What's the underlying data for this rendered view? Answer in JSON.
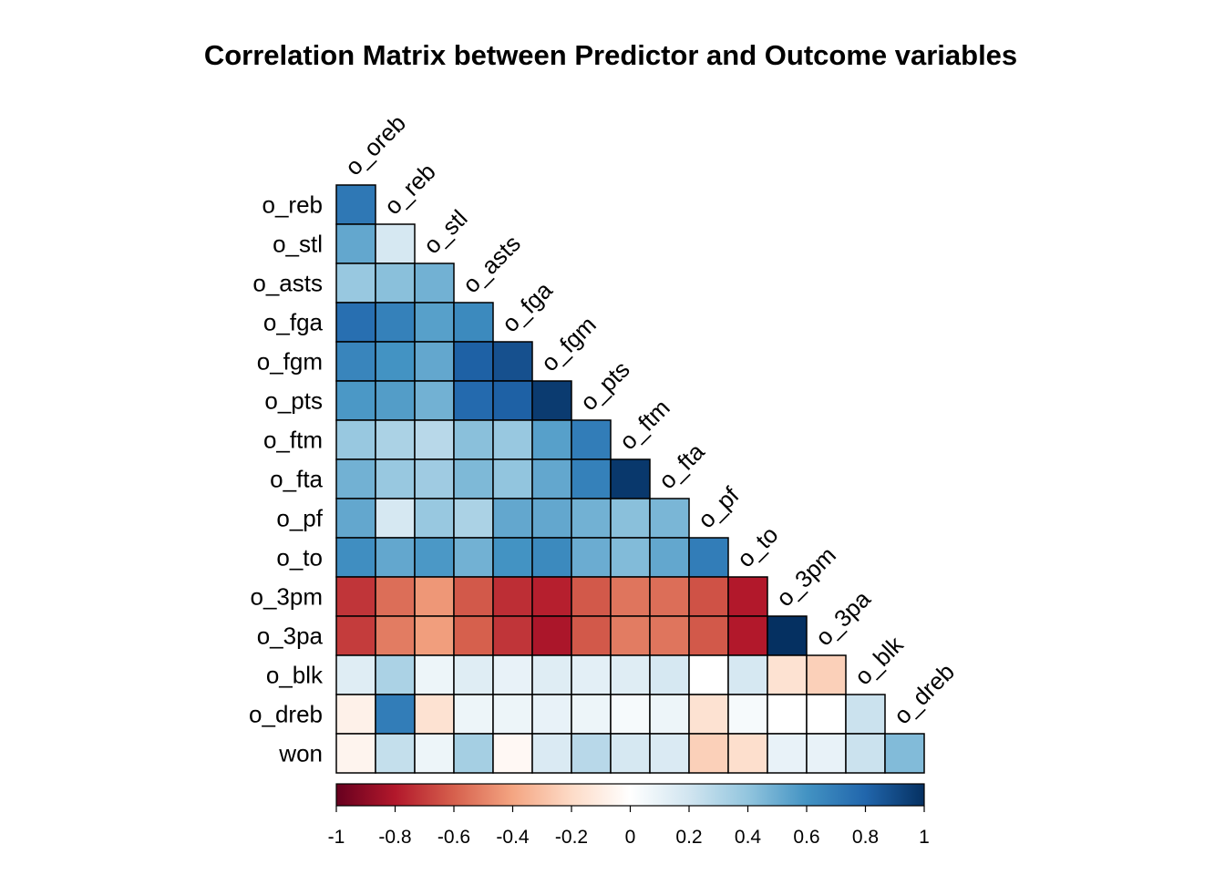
{
  "chart_data": {
    "type": "heatmap",
    "title": "Correlation Matrix between Predictor and Outcome variables",
    "row_labels": [
      "o_reb",
      "o_stl",
      "o_asts",
      "o_fga",
      "o_fgm",
      "o_pts",
      "o_ftm",
      "o_fta",
      "o_pf",
      "o_to",
      "o_3pm",
      "o_3pa",
      "o_blk",
      "o_dreb",
      "won"
    ],
    "col_labels": [
      "o_oreb",
      "o_reb",
      "o_stl",
      "o_asts",
      "o_fga",
      "o_fgm",
      "o_pts",
      "o_ftm",
      "o_fta",
      "o_pf",
      "o_to",
      "o_3pm",
      "o_3pa",
      "o_blk",
      "o_dreb"
    ],
    "lower_triangle": true,
    "values": [
      [
        0.72
      ],
      [
        0.52,
        0.18
      ],
      [
        0.38,
        0.42,
        0.48
      ],
      [
        0.76,
        0.68,
        0.55,
        0.64
      ],
      [
        0.66,
        0.6,
        0.52,
        0.82,
        0.88
      ],
      [
        0.58,
        0.56,
        0.48,
        0.78,
        0.82,
        0.96
      ],
      [
        0.38,
        0.32,
        0.28,
        0.42,
        0.38,
        0.55,
        0.7
      ],
      [
        0.48,
        0.38,
        0.36,
        0.45,
        0.4,
        0.52,
        0.68,
        0.97
      ],
      [
        0.52,
        0.18,
        0.38,
        0.32,
        0.52,
        0.52,
        0.48,
        0.42,
        0.46
      ],
      [
        0.62,
        0.52,
        0.58,
        0.48,
        0.6,
        0.64,
        0.5,
        0.44,
        0.52,
        0.7
      ],
      [
        -0.72,
        -0.56,
        -0.44,
        -0.62,
        -0.74,
        -0.78,
        -0.62,
        -0.54,
        -0.56,
        -0.64,
        -0.8
      ],
      [
        -0.7,
        -0.52,
        -0.42,
        -0.6,
        -0.72,
        -0.82,
        -0.62,
        -0.52,
        -0.54,
        -0.62,
        -0.8,
        1.0
      ],
      [
        0.14,
        0.32,
        0.08,
        0.14,
        0.1,
        0.14,
        0.12,
        0.14,
        0.18,
        0.0,
        0.18,
        -0.16,
        -0.24
      ],
      [
        -0.08,
        0.7,
        -0.16,
        0.08,
        0.08,
        0.1,
        0.08,
        0.04,
        0.08,
        -0.16,
        0.04,
        0.0,
        0.0,
        0.22
      ],
      [
        -0.06,
        0.24,
        0.08,
        0.34,
        -0.04,
        0.16,
        0.28,
        0.18,
        0.16,
        -0.24,
        -0.18,
        0.1,
        0.1,
        0.22,
        0.44
      ]
    ],
    "colorbar": {
      "range": [
        -1,
        1
      ],
      "ticks": [
        "-1",
        "-0.8",
        "-0.6",
        "-0.4",
        "-0.2",
        "0",
        "0.2",
        "0.4",
        "0.6",
        "0.8",
        "1"
      ],
      "placement": "bottom",
      "colors": [
        "#67001f",
        "#b2182b",
        "#d6604d",
        "#f4a582",
        "#fddbc7",
        "#ffffff",
        "#d1e5f0",
        "#92c5de",
        "#4393c3",
        "#2166ac",
        "#053061"
      ]
    },
    "grid": true
  }
}
